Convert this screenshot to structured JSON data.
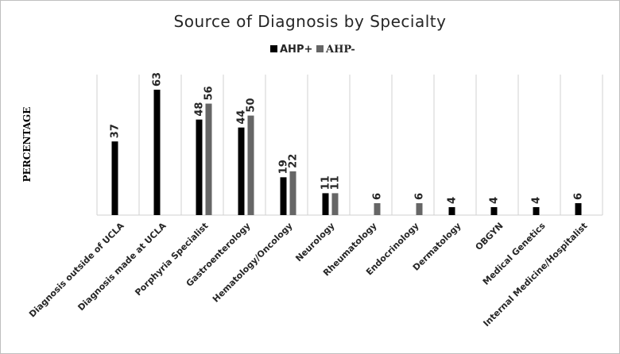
{
  "chart_data": {
    "type": "bar",
    "title": "Source of Diagnosis by Specialty",
    "ylabel": "PERCENTAGE",
    "xlabel": "",
    "categories": [
      "Diagnosis outside of UCLA",
      "Diagnosis made at UCLA",
      "Porphyria Specialist",
      "Gastroenterology",
      "Hematology/Oncology",
      "Neurology",
      "Rheumatology",
      "Endocrinology",
      "Dermatology",
      "OBGYN",
      "Medical Genetics",
      "Internal Medicine/Hospitalist"
    ],
    "series": [
      {
        "name": "AHP+",
        "color": "#000000",
        "values": [
          37,
          63,
          48,
          44,
          19,
          11,
          null,
          null,
          4,
          4,
          4,
          6
        ]
      },
      {
        "name": "AHP-",
        "color": "#666666",
        "values": [
          null,
          null,
          56,
          50,
          22,
          11,
          6,
          6,
          null,
          null,
          null,
          null
        ]
      }
    ],
    "ylim": [
      0,
      70
    ],
    "grid": "vertical category separators",
    "legend_position": "top-center"
  }
}
